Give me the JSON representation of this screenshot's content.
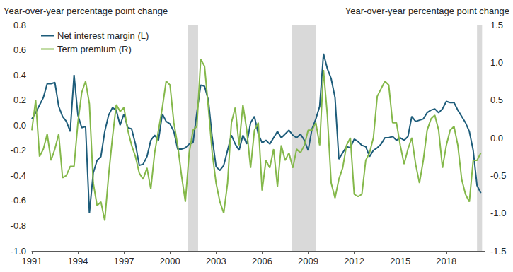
{
  "chart_data": {
    "type": "line",
    "ylabel": "Year-over-year percentage point change",
    "y2label": "Year-over-year percentage point change",
    "x": [
      1991,
      1991.25,
      1991.5,
      1991.75,
      1992,
      1992.25,
      1992.5,
      1992.75,
      1993,
      1993.25,
      1993.5,
      1993.75,
      1994,
      1994.25,
      1994.5,
      1994.75,
      1995,
      1995.25,
      1995.5,
      1995.75,
      1996,
      1996.25,
      1996.5,
      1996.75,
      1997,
      1997.25,
      1997.5,
      1997.75,
      1998,
      1998.25,
      1998.5,
      1998.75,
      1999,
      1999.25,
      1999.5,
      1999.75,
      2000,
      2000.25,
      2000.5,
      2000.75,
      2001,
      2001.25,
      2001.5,
      2001.75,
      2002,
      2002.25,
      2002.5,
      2002.75,
      2003,
      2003.25,
      2003.5,
      2003.75,
      2004,
      2004.25,
      2004.5,
      2004.75,
      2005,
      2005.25,
      2005.5,
      2005.75,
      2006,
      2006.25,
      2006.5,
      2006.75,
      2007,
      2007.25,
      2007.5,
      2007.75,
      2008,
      2008.25,
      2008.5,
      2008.75,
      2009,
      2009.25,
      2009.5,
      2009.75,
      2010,
      2010.25,
      2010.5,
      2010.75,
      2011,
      2011.25,
      2011.5,
      2011.75,
      2012,
      2012.25,
      2012.5,
      2012.75,
      2013,
      2013.25,
      2013.5,
      2013.75,
      2014,
      2014.25,
      2014.5,
      2014.75,
      2015,
      2015.25,
      2015.5,
      2015.75,
      2016,
      2016.25,
      2016.5,
      2016.75,
      2017,
      2017.25,
      2017.5,
      2017.75,
      2018,
      2018.25,
      2018.5,
      2018.75,
      2019,
      2019.25,
      2019.5,
      2019.75,
      2020,
      2020.25
    ],
    "series": [
      {
        "name": "Net interest margin (L)",
        "color": "#1d5c7a",
        "line_style": "solid",
        "axis": "y",
        "values": [
          0.05,
          0.1,
          0.16,
          0.22,
          0.33,
          0.33,
          0.34,
          0.15,
          0.07,
          0.03,
          -0.05,
          0.4,
          0.08,
          -0.02,
          -0.01,
          -0.7,
          -0.38,
          -0.28,
          -0.25,
          -0.05,
          0.08,
          0.14,
          0.12,
          0.0,
          0.09,
          -0.02,
          -0.03,
          -0.15,
          -0.32,
          -0.31,
          -0.25,
          -0.12,
          -0.08,
          -0.12,
          0.09,
          0.03,
          0.01,
          -0.05,
          -0.19,
          -0.19,
          -0.18,
          -0.15,
          -0.14,
          0.1,
          0.32,
          0.31,
          0.2,
          -0.1,
          -0.33,
          -0.36,
          -0.32,
          -0.2,
          -0.08,
          -0.15,
          -0.2,
          -0.08,
          -0.15,
          0.02,
          0.07,
          -0.07,
          -0.14,
          -0.12,
          -0.15,
          -0.1,
          -0.05,
          -0.1,
          -0.07,
          -0.04,
          -0.08,
          -0.1,
          -0.07,
          -0.12,
          -0.2,
          -0.03,
          0.05,
          0.15,
          0.57,
          0.45,
          0.37,
          0.22,
          -0.27,
          -0.22,
          -0.17,
          -0.18,
          -0.11,
          -0.13,
          -0.16,
          -0.17,
          -0.25,
          -0.2,
          -0.18,
          -0.15,
          -0.1,
          -0.1,
          -0.09,
          -0.12,
          -0.1,
          -0.12,
          -0.09,
          0.07,
          0.03,
          0.04,
          0.05,
          0.1,
          0.12,
          0.13,
          0.1,
          0.13,
          0.19,
          0.18,
          0.18,
          0.12,
          0.07,
          0.02,
          -0.05,
          -0.2,
          -0.48,
          -0.54
        ]
      },
      {
        "name": "Term premium (R)",
        "color": "#84b84a",
        "line_style": "solid",
        "axis": "y2",
        "values": [
          0.1,
          0.5,
          -0.25,
          -0.15,
          0.05,
          -0.3,
          -0.15,
          0.05,
          -0.53,
          -0.5,
          -0.38,
          -0.38,
          0.2,
          0.6,
          0.75,
          0.45,
          -0.6,
          -0.9,
          -0.85,
          -1.1,
          -0.5,
          0.0,
          0.44,
          0.35,
          0.4,
          0.1,
          -0.1,
          -0.25,
          -0.47,
          -0.55,
          -0.4,
          -0.68,
          -0.2,
          0.1,
          0.4,
          0.75,
          0.7,
          0.2,
          -0.1,
          -0.5,
          -0.85,
          -0.2,
          0.1,
          0.15,
          1.04,
          0.95,
          0.4,
          -0.2,
          -0.6,
          -0.85,
          -1.0,
          -0.6,
          0.2,
          0.4,
          -0.1,
          0.44,
          0.1,
          -0.4,
          0.1,
          0.2,
          -0.7,
          -0.3,
          -0.4,
          -0.15,
          -0.65,
          -0.1,
          -0.3,
          -0.2,
          -0.4,
          -0.15,
          -0.2,
          -0.1,
          0.1,
          0.1,
          0.2,
          -0.1,
          0.9,
          0.3,
          -0.6,
          -0.8,
          -0.55,
          -0.4,
          -0.1,
          0.0,
          -0.75,
          -0.78,
          -0.75,
          -0.3,
          -0.2,
          0.0,
          0.55,
          0.65,
          0.75,
          0.7,
          0.2,
          0.2,
          -0.1,
          -0.35,
          -0.15,
          0.0,
          -0.35,
          -0.6,
          -0.3,
          0.1,
          0.25,
          0.3,
          0.1,
          -0.4,
          -0.1,
          0.1,
          0.15,
          -0.1,
          -0.55,
          -0.75,
          -0.85,
          -0.3,
          -0.3,
          -0.2
        ]
      }
    ],
    "shaded_ranges": [
      [
        2001.17,
        2001.83
      ],
      [
        2007.92,
        2009.5
      ],
      [
        2020.0,
        2020.33
      ]
    ],
    "xlim": [
      1991,
      2020.5
    ],
    "xticks": [
      1991,
      1994,
      1997,
      2000,
      2003,
      2006,
      2009,
      2012,
      2015,
      2018
    ],
    "ylim": [
      -1.0,
      0.8
    ],
    "yticks": [
      {
        "value": -1.0,
        "label": "-1.0"
      },
      -0.8,
      -0.6,
      -0.4,
      -0.2,
      {
        "value": 0,
        "label": "0.0"
      },
      0.2,
      0.4,
      0.6,
      0.8
    ],
    "y2lim": [
      -1.5,
      1.5
    ],
    "y2ticks": [
      -1.5,
      {
        "value": -1.0,
        "label": "-1.0"
      },
      -0.5,
      {
        "value": 0,
        "label": "0.0"
      },
      0.5,
      {
        "value": 1.0,
        "label": "1.0"
      },
      1.5
    ],
    "grid": false,
    "legend": "top-left"
  }
}
